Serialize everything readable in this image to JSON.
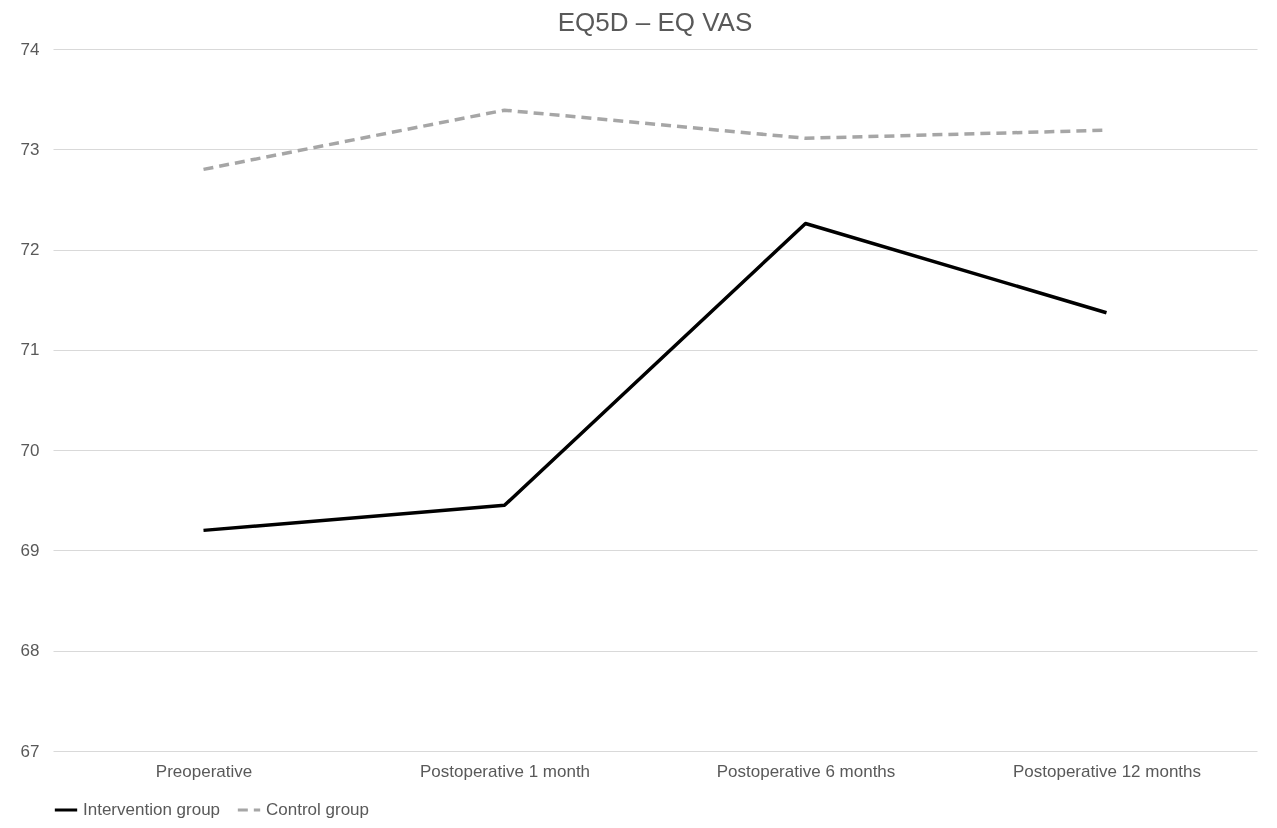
{
  "chart_data": {
    "type": "line",
    "title": "EQ5D – EQ VAS",
    "categories": [
      "Preoperative",
      "Postoperative 1 month",
      "Postoperative 6 months",
      "Postoperative 12 months"
    ],
    "series": [
      {
        "name": "Intervention group",
        "color": "#000000",
        "line_style": "solid",
        "values": [
          69.2,
          69.45,
          72.26,
          71.37
        ]
      },
      {
        "name": "Control group",
        "color": "#a6a6a6",
        "line_style": "dashed",
        "values": [
          72.8,
          73.39,
          73.11,
          73.19
        ]
      }
    ],
    "ylim": [
      67,
      74
    ],
    "yticks": [
      67,
      68,
      69,
      70,
      71,
      72,
      73,
      74
    ],
    "grid": "y",
    "legend": "bottom",
    "marker": "none"
  }
}
